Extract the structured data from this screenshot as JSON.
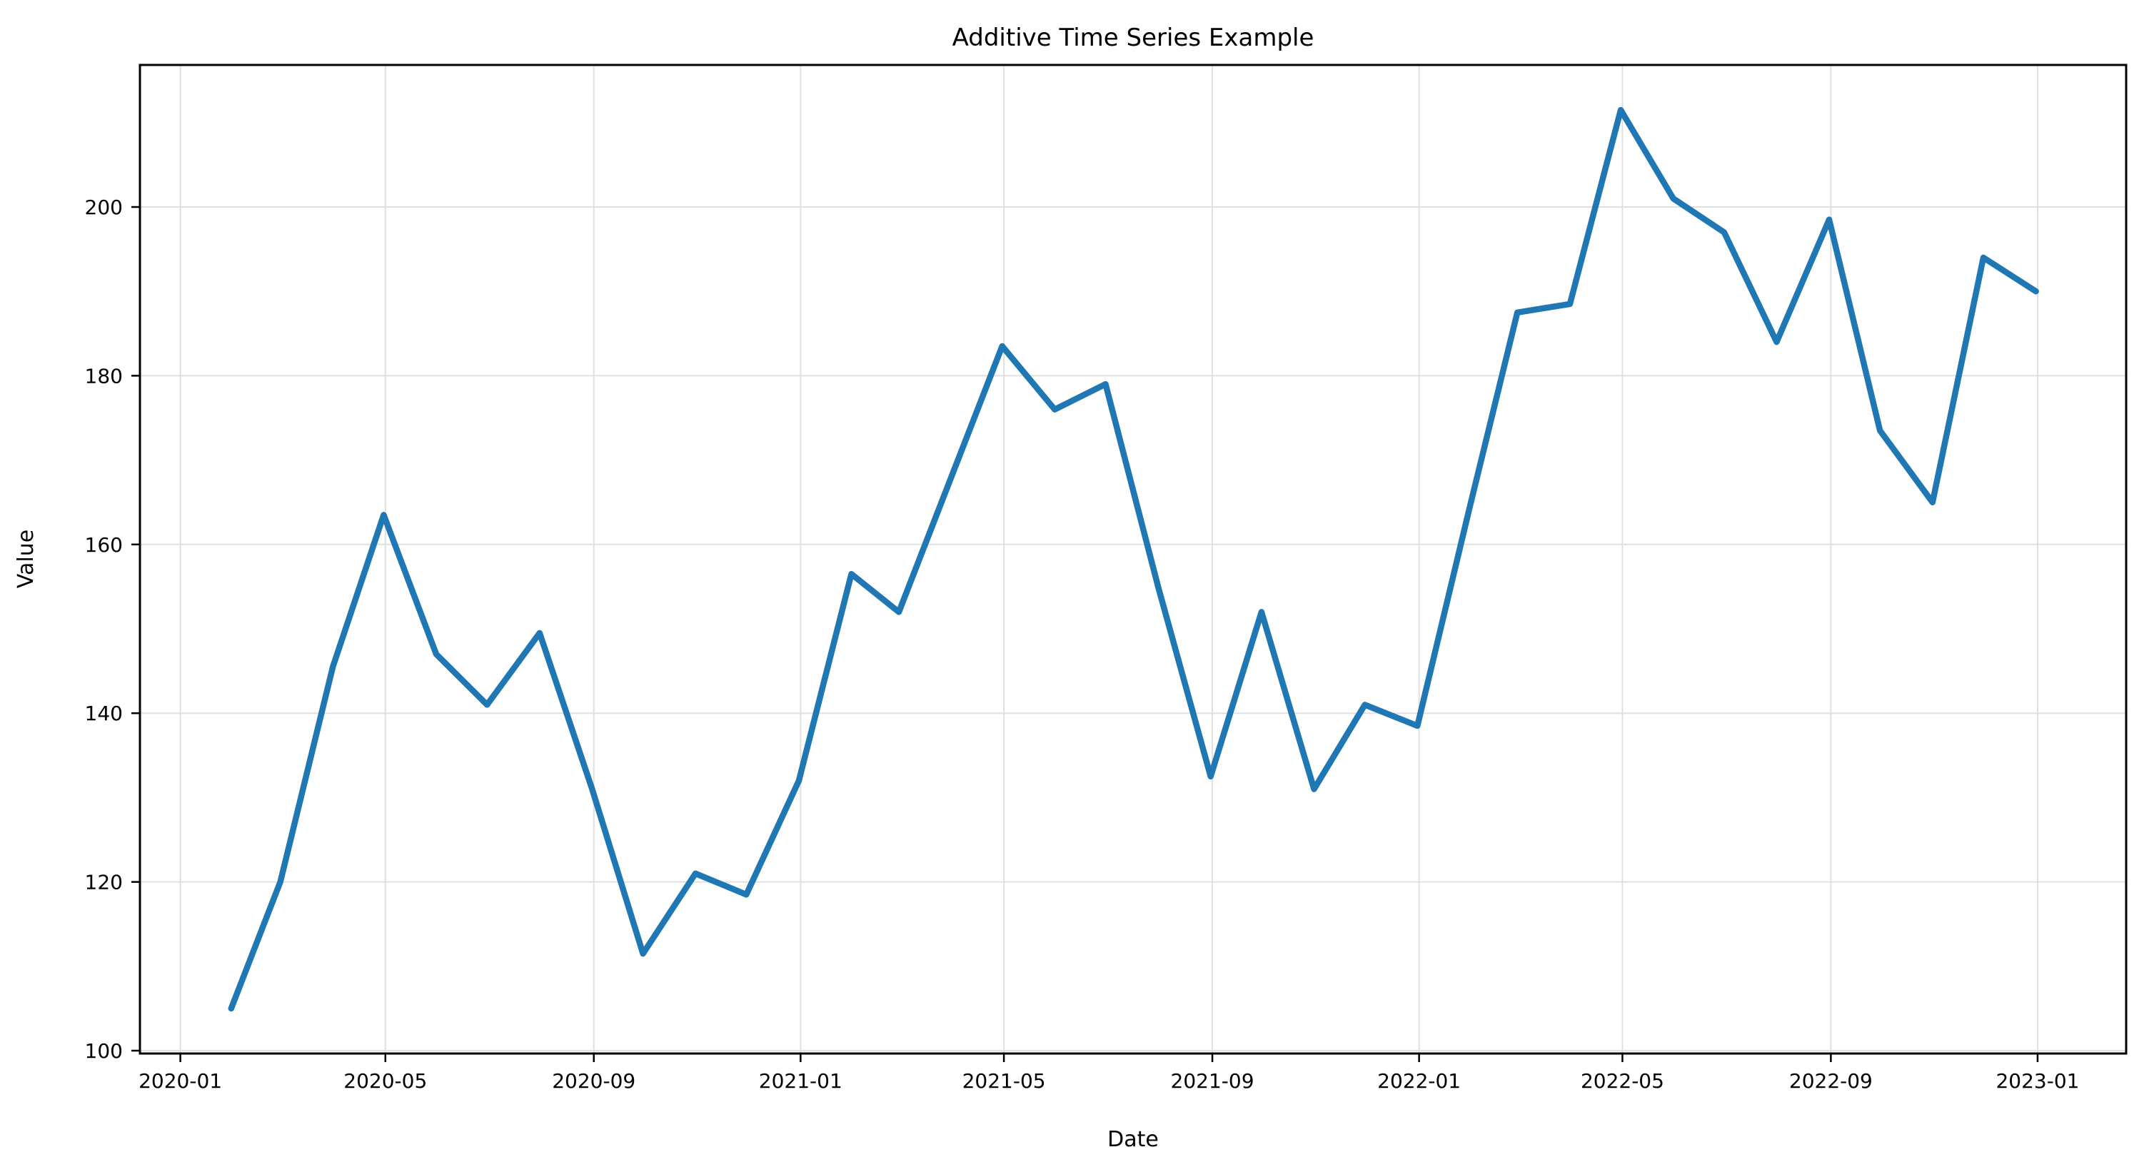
{
  "figure": {
    "background": "#ffffff"
  },
  "chart_data": {
    "type": "line",
    "title": "Additive Time Series Example",
    "xlabel": "Date",
    "ylabel": "Value",
    "grid": true,
    "legend": "none",
    "line_color": "#1f77b4",
    "grid_color": "#e0e0e0",
    "axis_color": "#000000",
    "x_tick_labels": [
      "2020-01",
      "2020-05",
      "2020-09",
      "2021-01",
      "2021-05",
      "2021-09",
      "2022-01",
      "2022-05",
      "2022-09",
      "2023-01"
    ],
    "y_ticks": [
      100,
      120,
      140,
      160,
      180,
      200
    ],
    "ylim": [
      99.7,
      216.8
    ],
    "xlim_dates": [
      "2019-12-09",
      "2023-02-22"
    ],
    "x_frequency": "month-end",
    "series": [
      {
        "name": "value",
        "x": [
          "2020-01",
          "2020-02",
          "2020-03",
          "2020-04",
          "2020-05",
          "2020-06",
          "2020-07",
          "2020-08",
          "2020-09",
          "2020-10",
          "2020-11",
          "2020-12",
          "2021-01",
          "2021-02",
          "2021-03",
          "2021-04",
          "2021-05",
          "2021-06",
          "2021-07",
          "2021-08",
          "2021-09",
          "2021-10",
          "2021-11",
          "2021-12",
          "2022-01",
          "2022-02",
          "2022-03",
          "2022-04",
          "2022-05",
          "2022-06",
          "2022-07",
          "2022-08",
          "2022-09",
          "2022-10",
          "2022-11",
          "2022-12"
        ],
        "values": [
          105,
          120,
          145.5,
          163.5,
          147,
          141,
          149.5,
          131,
          111.5,
          121,
          118.5,
          132,
          156.5,
          152,
          168,
          183.5,
          176,
          179,
          155,
          132.5,
          152,
          131,
          141,
          138.5,
          164.5,
          187.5,
          188.5,
          211.5,
          201,
          197,
          184,
          198.5,
          173.5,
          165,
          194,
          190
        ]
      }
    ]
  }
}
